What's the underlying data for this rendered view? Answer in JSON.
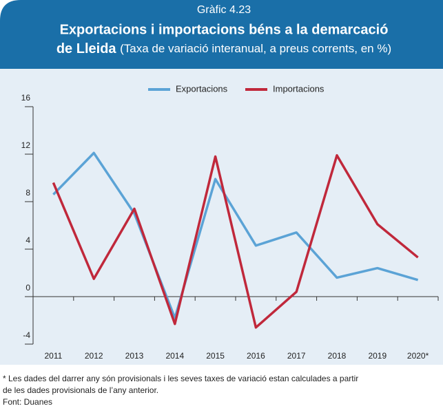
{
  "header": {
    "label": "Gràfic 4.23",
    "title": "Exportacions i importacions béns a la demarcació",
    "title_line2": "de Lleida",
    "subtitle": "(Taxa de variació interanual, a preus corrents, en %)"
  },
  "chart_data": {
    "type": "line",
    "categories": [
      "2011",
      "2012",
      "2013",
      "2014",
      "2015",
      "2016",
      "2017",
      "2018",
      "2019",
      "2020*"
    ],
    "series": [
      {
        "name": "Exportacions",
        "color": "#5ba3d6",
        "values": [
          8.6,
          12.1,
          7.0,
          -1.8,
          9.9,
          4.3,
          5.4,
          1.6,
          2.4,
          1.4
        ]
      },
      {
        "name": "Importacions",
        "color": "#c0283b",
        "values": [
          9.6,
          1.5,
          7.4,
          -2.3,
          11.8,
          -2.6,
          0.4,
          11.9,
          6.1,
          3.3
        ]
      }
    ],
    "ylim": [
      -4,
      16
    ],
    "yticks": [
      -4,
      0,
      4,
      8,
      12,
      16
    ],
    "legend": "top"
  },
  "notes": [
    "* Les dades del darrer any són provisionals i les seves taxes de variació estan calculades a partir",
    "de les dades provisionals de l’any anterior.",
    "Font: Duanes"
  ]
}
